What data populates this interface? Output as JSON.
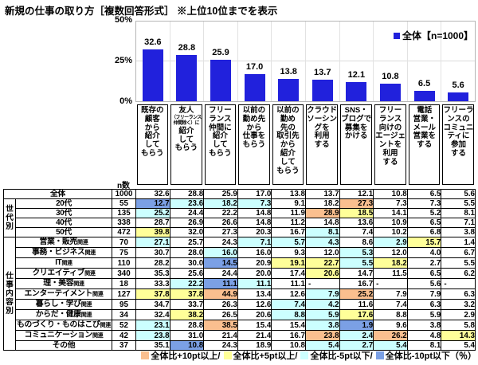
{
  "title": "新規の仕事の取り方［複数回答形式］ ※上位10位までを表示",
  "chart_data": [
    {
      "type": "bar",
      "title": "新規の仕事の取り方［複数回答形式］ ※上位10位までを表示",
      "legend_label": "全体【n=1000】",
      "legend_position": "top-right",
      "bar_color": "#2121DC",
      "ylim": [
        0,
        50
      ],
      "y_ticks": [
        "50%",
        "25%",
        "0%"
      ],
      "grid": "horizontal gridline at 25%, light vertical column separators",
      "categories": [
        "既存の顧客から紹介してもらう",
        "友人（フリーランス仲間除く）に紹介してもらう",
        "フリーランス仲間に紹介してもらう",
        "以前の勤め先から仕事をもらう",
        "以前の勤め先の取引先から紹介してもらう",
        "クラウドソーシングを利用する",
        "SNS・ブログで募集をかける",
        "フリーランス向けのエージェントを利用する",
        "電話営業・メール営業をする",
        "フリーランスのコミュニティに参加する"
      ],
      "values": [
        "32.6",
        "28.8",
        "25.9",
        "17.0",
        "13.8",
        "13.7",
        "12.1",
        "10.8",
        "6.5",
        "5.6"
      ],
      "category_display": [
        {
          "lines": [
            "既存の",
            "顧客",
            "から",
            "紹介",
            "して",
            "もらう"
          ],
          "small": []
        },
        {
          "lines": [
            "友人",
            "（フリーランス",
            "仲間除く）に",
            "紹介",
            "して",
            "もらう"
          ],
          "small": [
            1,
            2
          ]
        },
        {
          "lines": [
            "フリー",
            "ランス",
            "仲間に",
            "紹介",
            "して",
            "もらう"
          ],
          "small": []
        },
        {
          "lines": [
            "以前の",
            "勤め先",
            "から",
            "仕事を",
            "もらう"
          ],
          "small": []
        },
        {
          "lines": [
            "以前の",
            "勤め",
            "先の",
            "取引先",
            "から",
            "紹介",
            "して",
            "もらう"
          ],
          "small": []
        },
        {
          "lines": [
            "クラウド",
            "ソーシン",
            "グを",
            "利用",
            "する"
          ],
          "small": []
        },
        {
          "lines": [
            "SNS・",
            "ブログで",
            "募集を",
            "かける"
          ],
          "small": []
        },
        {
          "lines": [
            "フリー",
            "ランス",
            "向けの",
            "エージェ",
            "ントを",
            "利用",
            "する"
          ],
          "small": []
        },
        {
          "lines": [
            "電話",
            "営業・",
            "メール",
            "営業を",
            "する"
          ],
          "small": []
        },
        {
          "lines": [
            "フリーラ",
            "ンスの",
            "コミュニ",
            "ティに",
            "参加",
            "する"
          ],
          "small": []
        }
      ]
    },
    {
      "type": "table",
      "n_header": "n数",
      "row_groups": [
        {
          "label": "",
          "rows": [
            {
              "label": "全体",
              "suffix": "",
              "n": "1000",
              "values": [
                "32.6",
                "28.8",
                "25.9",
                "17.0",
                "13.8",
                "13.7",
                "12.1",
                "10.8",
                "6.5",
                "5.6"
              ]
            }
          ]
        },
        {
          "label": "世代別",
          "rows": [
            {
              "label": "20代",
              "suffix": "",
              "n": "55",
              "values": [
                "12.7",
                "23.6",
                "18.2",
                "7.3",
                "9.1",
                "18.2",
                "27.3",
                "7.3",
                "7.3",
                "5.5"
              ]
            },
            {
              "label": "30代",
              "suffix": "",
              "n": "135",
              "values": [
                "25.2",
                "24.4",
                "22.2",
                "14.8",
                "11.9",
                "28.9",
                "18.5",
                "14.1",
                "5.2",
                "8.1"
              ]
            },
            {
              "label": "40代",
              "suffix": "",
              "n": "338",
              "values": [
                "28.7",
                "26.9",
                "26.6",
                "14.8",
                "11.2",
                "14.8",
                "13.6",
                "10.9",
                "6.5",
                "7.1"
              ]
            },
            {
              "label": "50代",
              "suffix": "",
              "n": "472",
              "values": [
                "39.8",
                "32.0",
                "27.3",
                "20.3",
                "16.7",
                "8.1",
                "7.4",
                "10.2",
                "6.8",
                "3.8"
              ]
            }
          ]
        },
        {
          "label": "仕事内容別",
          "rows": [
            {
              "label": "営業・販売",
              "suffix": "関連",
              "n": "70",
              "values": [
                "27.1",
                "25.7",
                "24.3",
                "7.1",
                "5.7",
                "4.3",
                "8.6",
                "2.9",
                "15.7",
                "1.4"
              ]
            },
            {
              "label": "事務・ビジネス",
              "suffix": "関連",
              "n": "75",
              "values": [
                "30.7",
                "28.0",
                "16.0",
                "16.0",
                "9.3",
                "12.0",
                "5.3",
                "12.0",
                "4.0",
                "6.7"
              ]
            },
            {
              "label": "IT",
              "suffix": "関連",
              "n": "110",
              "values": [
                "28.2",
                "30.0",
                "14.5",
                "20.9",
                "19.1",
                "22.7",
                "5.5",
                "18.2",
                "2.7",
                "5.5"
              ]
            },
            {
              "label": "クリエイティブ",
              "suffix": "関連",
              "n": "340",
              "values": [
                "35.3",
                "25.6",
                "24.4",
                "20.0",
                "17.4",
                "20.6",
                "14.7",
                "11.5",
                "6.5",
                "6.2"
              ]
            },
            {
              "label": "理・美容",
              "suffix": "関連",
              "n": "18",
              "values": [
                "33.3",
                "22.2",
                "11.1",
                "11.1",
                "11.1",
                "-",
                "16.7",
                "-",
                "5.6",
                "-"
              ]
            },
            {
              "label": "エンターテイメント",
              "suffix": "関連",
              "n": "127",
              "values": [
                "37.8",
                "37.8",
                "44.9",
                "13.4",
                "12.6",
                "7.9",
                "25.2",
                "7.9",
                "7.9",
                "6.3"
              ]
            },
            {
              "label": "暮らし・学び",
              "suffix": "関連",
              "n": "95",
              "values": [
                "34.7",
                "33.7",
                "26.3",
                "12.6",
                "7.4",
                "4.2",
                "11.6",
                "7.4",
                "6.3",
                "3.2"
              ]
            },
            {
              "label": "からだ・健康",
              "suffix": "関連",
              "n": "34",
              "values": [
                "32.4",
                "38.2",
                "26.5",
                "20.6",
                "8.8",
                "5.9",
                "17.6",
                "8.8",
                "5.9",
                "2.9"
              ]
            },
            {
              "label": "ものづくり・ものはこび",
              "suffix": "関連",
              "n": "52",
              "values": [
                "23.1",
                "28.8",
                "38.5",
                "15.4",
                "15.4",
                "3.8",
                "1.9",
                "9.6",
                "3.8",
                "5.8"
              ]
            },
            {
              "label": "コミュニケーション",
              "suffix": "関連",
              "n": "42",
              "values": [
                "23.8",
                "31.0",
                "21.4",
                "21.4",
                "16.7",
                "23.8",
                "2.4",
                "26.2",
                "4.8",
                "14.3"
              ]
            },
            {
              "label": "その他",
              "suffix": "",
              "n": "37",
              "values": [
                "35.1",
                "10.8",
                "24.3",
                "18.9",
                "10.8",
                "5.4",
                "2.7",
                "5.4",
                "8.1",
                "5.4"
              ]
            }
          ]
        }
      ]
    }
  ],
  "highlight_legend": {
    "items": [
      {
        "label": "全体比+10pt以上",
        "color": "#FABF8F",
        "rule": "value - overall >= 10"
      },
      {
        "label": "全体比+5pt以上",
        "color": "#FFFF99",
        "rule": "value - overall >= 5"
      },
      {
        "label": "全体比-5pt以下",
        "color": "#CCFFFF",
        "rule": "value - overall <= -5"
      },
      {
        "label": "全体比-10pt以下",
        "color": "#7BA0E5",
        "rule": "value - overall <= -10"
      }
    ],
    "separator": "/",
    "suffix": "（％）"
  }
}
